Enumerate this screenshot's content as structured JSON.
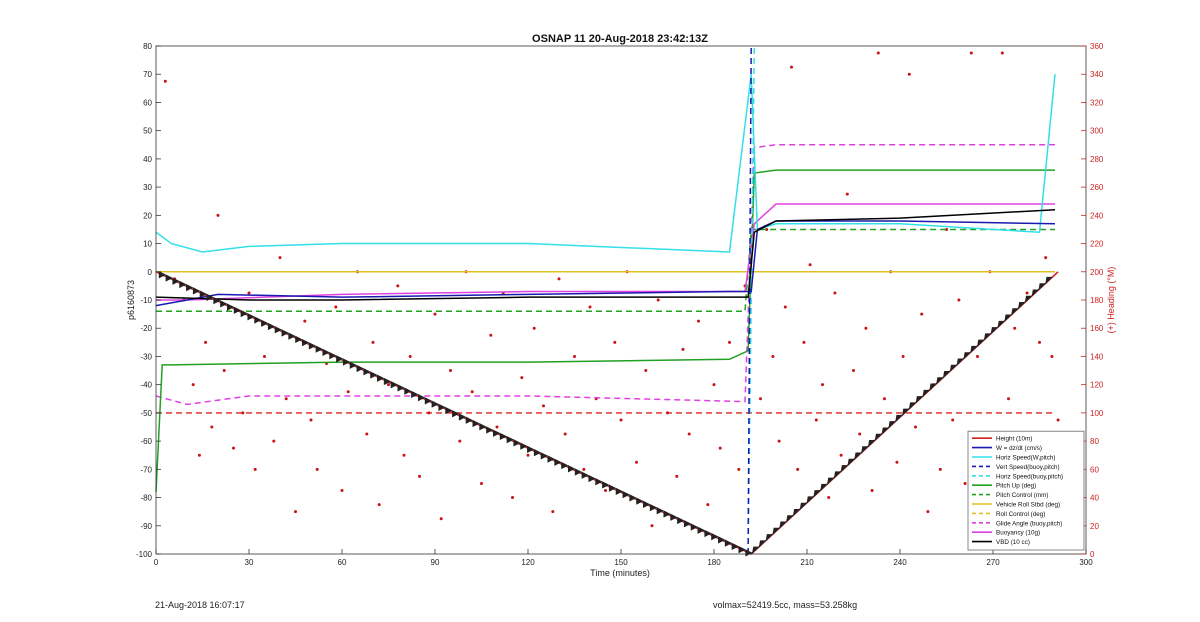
{
  "chart_data": {
    "type": "line",
    "title": "OSNAP 11 20-Aug-2018 23:42:13Z",
    "xlabel": "Time (minutes)",
    "ylabel": "p6160873",
    "y2label": "(+) Heading (°M)",
    "xlim": [
      0,
      300
    ],
    "ylim": [
      -100,
      80
    ],
    "y2lim": [
      0,
      360
    ],
    "xticks": [
      "0",
      "30",
      "60",
      "90",
      "120",
      "150",
      "180",
      "210",
      "240",
      "270",
      "300"
    ],
    "yticks": [
      "80",
      "70",
      "60",
      "50",
      "40",
      "30",
      "20",
      "10",
      "0",
      "-10",
      "-20",
      "-30",
      "-40",
      "-50",
      "-60",
      "-70",
      "-80",
      "-90",
      "-100"
    ],
    "y2ticks": [
      "360",
      "340",
      "320",
      "300",
      "280",
      "260",
      "240",
      "220",
      "200",
      "180",
      "160",
      "140",
      "120",
      "100",
      "80",
      "60",
      "40",
      "20",
      "0"
    ],
    "grid": false,
    "legend_position": "bottom-right",
    "legend": [
      {
        "label": "Height (10m)",
        "color": "#cc2222",
        "style": "solid"
      },
      {
        "label": "W = dz/dt (cm/s)",
        "color": "#1a1ab0",
        "style": "solid"
      },
      {
        "label": "Horiz Speed(W,pitch)",
        "color": "#33e0e8",
        "style": "solid"
      },
      {
        "label": "Vert Speed(buoy,pitch)",
        "color": "#1a1ab0",
        "style": "dashed"
      },
      {
        "label": "Horiz Speed(buoy,pitch)",
        "color": "#33e0e8",
        "style": "dashed"
      },
      {
        "label": "Pitch Up (deg)",
        "color": "#22a022",
        "style": "solid"
      },
      {
        "label": "Pitch Control (mm)",
        "color": "#22a022",
        "style": "dashed"
      },
      {
        "label": "Vehicle Roll Stbd (deg)",
        "color": "#e0c020",
        "style": "solid"
      },
      {
        "label": "Roll Control (deg)",
        "color": "#e0c020",
        "style": "dashed"
      },
      {
        "label": "Glide Angle (buoy,pitch)",
        "color": "#e040e0",
        "style": "dashed"
      },
      {
        "label": "Buoyancy (10g)",
        "color": "#e040e0",
        "style": "solid"
      },
      {
        "label": "VBD (10 cc)",
        "color": "#000000",
        "style": "solid"
      }
    ],
    "series": [
      {
        "name": "Height (10m)",
        "x": [
          0,
          192,
          291
        ],
        "y": [
          0,
          -100,
          0
        ]
      },
      {
        "name": "W = dz/dt (cm/s)",
        "x": [
          0,
          20,
          60,
          120,
          185,
          192,
          194,
          200,
          240,
          290
        ],
        "y": [
          -12,
          -8,
          -9,
          -8,
          -7,
          -7,
          15,
          18,
          18,
          17
        ]
      },
      {
        "name": "Horiz Speed(W,pitch)",
        "x": [
          0,
          5,
          15,
          30,
          60,
          120,
          185,
          192,
          194,
          200,
          240,
          285,
          290
        ],
        "y": [
          14,
          10,
          7,
          9,
          10,
          10,
          7,
          70,
          15,
          17,
          17,
          14,
          70
        ]
      },
      {
        "name": "Vert Speed(buoy,pitch)",
        "x": [
          191,
          192
        ],
        "y": [
          -100,
          80
        ]
      },
      {
        "name": "Horiz Speed(buoy,pitch)",
        "x": [
          191,
          193
        ],
        "y": [
          -100,
          80
        ]
      },
      {
        "name": "Pitch Up (deg)",
        "x": [
          0,
          2,
          5,
          60,
          120,
          185,
          191,
          193,
          200,
          240,
          290
        ],
        "y": [
          -78,
          -33,
          -33,
          -32,
          -32,
          -31,
          -28,
          35,
          36,
          36,
          36
        ]
      },
      {
        "name": "Pitch Control (mm)",
        "x": [
          0,
          190,
          192,
          290
        ],
        "y": [
          -14,
          -14,
          15,
          15
        ]
      },
      {
        "name": "Vehicle Roll Stbd (deg)",
        "x": [
          0,
          190,
          192,
          290
        ],
        "y": [
          0,
          0,
          0,
          0
        ]
      },
      {
        "name": "Roll Control (deg)",
        "x": [
          0,
          190,
          192,
          290
        ],
        "y": [
          0,
          0,
          0,
          0
        ]
      },
      {
        "name": "Glide Angle (buoy,pitch)",
        "x": [
          0,
          10,
          30,
          60,
          120,
          190,
          193,
          200,
          240,
          290
        ],
        "y": [
          -44,
          -47,
          -44,
          -44,
          -44,
          -46,
          44,
          45,
          45,
          45
        ]
      },
      {
        "name": "Buoyancy (10g)",
        "x": [
          0,
          10,
          60,
          120,
          190,
          193,
          200,
          240,
          290
        ],
        "y": [
          -10,
          -10,
          -8,
          -7,
          -7,
          17,
          24,
          24,
          24
        ]
      },
      {
        "name": "VBD (10 cc)",
        "x": [
          0,
          30,
          60,
          120,
          191,
          193,
          200,
          240,
          290
        ],
        "y": [
          -9,
          -10,
          -10,
          -9,
          -9,
          14,
          18,
          19,
          22
        ]
      }
    ],
    "reference_line": {
      "y": -50,
      "color": "#dd2222",
      "style": "dashed",
      "x_range": [
        0,
        290
      ]
    },
    "heading_points": [
      [
        3,
        335
      ],
      [
        6,
        195
      ],
      [
        9,
        180
      ],
      [
        12,
        120
      ],
      [
        14,
        70
      ],
      [
        16,
        150
      ],
      [
        18,
        90
      ],
      [
        20,
        240
      ],
      [
        22,
        130
      ],
      [
        25,
        75
      ],
      [
        28,
        100
      ],
      [
        30,
        185
      ],
      [
        32,
        60
      ],
      [
        35,
        140
      ],
      [
        38,
        80
      ],
      [
        40,
        210
      ],
      [
        42,
        110
      ],
      [
        45,
        30
      ],
      [
        48,
        165
      ],
      [
        50,
        95
      ],
      [
        52,
        60
      ],
      [
        55,
        135
      ],
      [
        58,
        175
      ],
      [
        60,
        45
      ],
      [
        62,
        115
      ],
      [
        65,
        200
      ],
      [
        68,
        85
      ],
      [
        70,
        150
      ],
      [
        72,
        35
      ],
      [
        75,
        120
      ],
      [
        78,
        190
      ],
      [
        80,
        70
      ],
      [
        82,
        140
      ],
      [
        85,
        55
      ],
      [
        88,
        100
      ],
      [
        90,
        170
      ],
      [
        92,
        25
      ],
      [
        95,
        130
      ],
      [
        98,
        80
      ],
      [
        100,
        200
      ],
      [
        102,
        115
      ],
      [
        105,
        50
      ],
      [
        108,
        155
      ],
      [
        110,
        90
      ],
      [
        112,
        185
      ],
      [
        115,
        40
      ],
      [
        118,
        125
      ],
      [
        120,
        70
      ],
      [
        122,
        160
      ],
      [
        125,
        105
      ],
      [
        128,
        30
      ],
      [
        130,
        195
      ],
      [
        132,
        85
      ],
      [
        135,
        140
      ],
      [
        138,
        60
      ],
      [
        140,
        175
      ],
      [
        142,
        110
      ],
      [
        145,
        45
      ],
      [
        148,
        150
      ],
      [
        150,
        95
      ],
      [
        152,
        200
      ],
      [
        155,
        65
      ],
      [
        158,
        130
      ],
      [
        160,
        20
      ],
      [
        162,
        180
      ],
      [
        165,
        100
      ],
      [
        168,
        55
      ],
      [
        170,
        145
      ],
      [
        172,
        85
      ],
      [
        175,
        165
      ],
      [
        178,
        35
      ],
      [
        180,
        120
      ],
      [
        182,
        75
      ],
      [
        185,
        150
      ],
      [
        188,
        60
      ],
      [
        190,
        190
      ],
      [
        195,
        110
      ],
      [
        197,
        230
      ],
      [
        199,
        140
      ],
      [
        201,
        80
      ],
      [
        203,
        175
      ],
      [
        205,
        345
      ],
      [
        207,
        60
      ],
      [
        209,
        150
      ],
      [
        211,
        205
      ],
      [
        213,
        95
      ],
      [
        215,
        120
      ],
      [
        217,
        40
      ],
      [
        219,
        185
      ],
      [
        221,
        70
      ],
      [
        223,
        255
      ],
      [
        225,
        130
      ],
      [
        227,
        85
      ],
      [
        229,
        160
      ],
      [
        231,
        45
      ],
      [
        233,
        355
      ],
      [
        235,
        110
      ],
      [
        237,
        200
      ],
      [
        239,
        65
      ],
      [
        241,
        140
      ],
      [
        243,
        340
      ],
      [
        245,
        90
      ],
      [
        247,
        170
      ],
      [
        249,
        30
      ],
      [
        251,
        120
      ],
      [
        253,
        60
      ],
      [
        255,
        230
      ],
      [
        257,
        95
      ],
      [
        259,
        180
      ],
      [
        261,
        50
      ],
      [
        263,
        355
      ],
      [
        265,
        140
      ],
      [
        267,
        80
      ],
      [
        269,
        200
      ],
      [
        271,
        25
      ],
      [
        273,
        355
      ],
      [
        275,
        110
      ],
      [
        277,
        160
      ],
      [
        279,
        70
      ],
      [
        281,
        185
      ],
      [
        283,
        45
      ],
      [
        285,
        150
      ],
      [
        287,
        210
      ],
      [
        289,
        140
      ],
      [
        291,
        95
      ]
    ],
    "footer_left": "21-Aug-2018 16:07:17",
    "footer_right": "volmax=52419.5cc, mass=53.258kg"
  }
}
